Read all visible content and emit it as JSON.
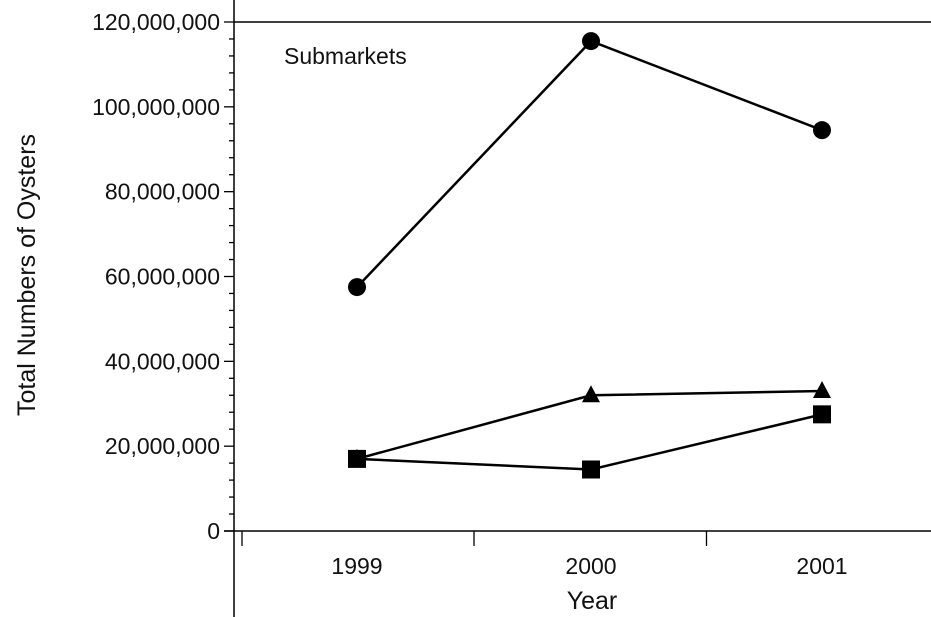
{
  "chart_data": {
    "type": "line",
    "title": "",
    "annotation": "Submarkets",
    "xlabel": "Year",
    "ylabel": "Total Numbers of Oysters",
    "categories": [
      "1999",
      "2000",
      "2001"
    ],
    "ylim": [
      0,
      120000000
    ],
    "yticks": [
      0,
      20000000,
      40000000,
      60000000,
      80000000,
      100000000,
      120000000
    ],
    "ytick_labels": [
      "0",
      "20,000,000",
      "40,000,000",
      "60,000,000",
      "80,000,000",
      "100,000,000",
      "120,000,000"
    ],
    "grid": false,
    "legend": "none",
    "series": [
      {
        "marker": "circle",
        "values": [
          57500000,
          115500000,
          94500000
        ]
      },
      {
        "marker": "triangle",
        "values": [
          17000000,
          32000000,
          33000000
        ]
      },
      {
        "marker": "square",
        "values": [
          17000000,
          14500000,
          27500000
        ]
      }
    ],
    "colors": {
      "line": "#000000",
      "marker": "#000000"
    }
  }
}
